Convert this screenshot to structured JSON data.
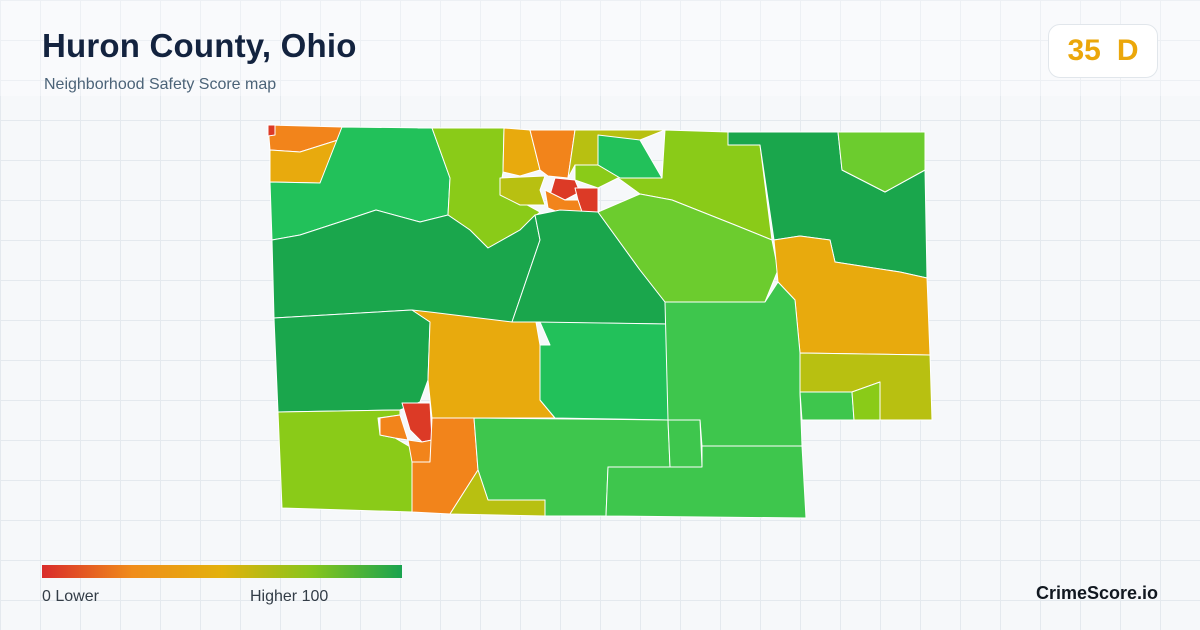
{
  "header": {
    "title": "Huron County, Ohio",
    "subtitle": "Neighborhood Safety Score map"
  },
  "score": {
    "value": "35",
    "grade": "D",
    "color": "#eba70b"
  },
  "legend": {
    "min_label": "0  Lower",
    "max_label": "Higher  100",
    "gradient_colors": [
      "#d92b2b",
      "#f08c1a",
      "#e3b10c",
      "#86c51c",
      "#19a34f"
    ]
  },
  "brand": {
    "name": "CrimeScore.io"
  },
  "map": {
    "region_colors": {
      "lowest": "#dc3a26",
      "low": "#f2841b",
      "below_mid": "#e8aa0d",
      "mid": "#b8c011",
      "above_mid": "#8acb18",
      "high": "#6ccc2e",
      "higher": "#3ec64d",
      "very_high": "#22c15a",
      "top": "#1aa64c"
    }
  }
}
